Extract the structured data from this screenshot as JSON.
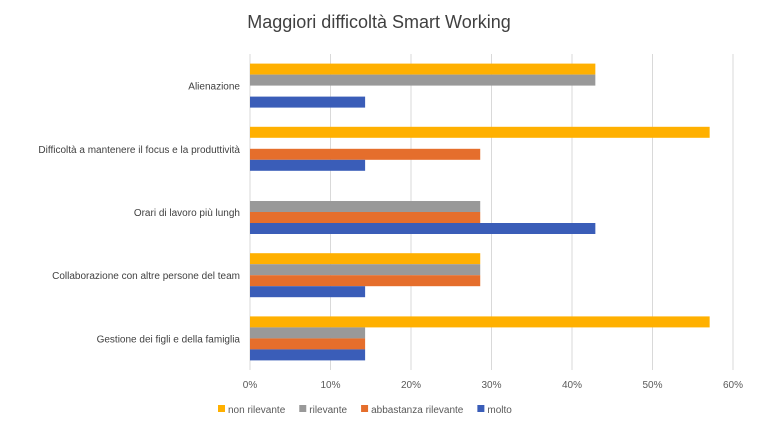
{
  "chart_data": {
    "type": "bar",
    "orientation": "horizontal",
    "title": "Maggiori difficoltà Smart Working",
    "xlabel": "",
    "ylabel": "",
    "xlim": [
      0,
      60
    ],
    "x_ticks": [
      "0%",
      "10%",
      "20%",
      "30%",
      "40%",
      "50%",
      "60%"
    ],
    "grid": true,
    "legend_position": "bottom",
    "categories": [
      "Alienazione",
      "Difficoltà  a mantenere il focus e la produttività",
      "Orari di lavoro più lungh",
      "Collaborazione con altre persone del team",
      "Gestione dei figli e della famiglia"
    ],
    "series": [
      {
        "name": "non rilevante",
        "color": "#FFB000",
        "values": [
          42.9,
          57.1,
          0,
          28.6,
          57.1
        ]
      },
      {
        "name": "rilevante",
        "color": "#999999",
        "values": [
          42.9,
          0,
          28.6,
          28.6,
          14.3
        ]
      },
      {
        "name": "abbastanza rilevante",
        "color": "#E56E2C",
        "values": [
          0,
          28.6,
          28.6,
          28.6,
          14.3
        ]
      },
      {
        "name": "molto",
        "color": "#3A5DB8",
        "values": [
          14.3,
          14.3,
          42.9,
          14.3,
          14.3
        ]
      }
    ]
  }
}
